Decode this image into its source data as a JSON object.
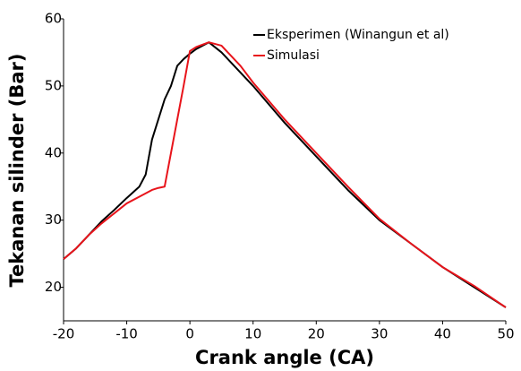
{
  "chart_data": {
    "type": "line",
    "xlabel": "Crank angle (CA)",
    "ylabel": "Tekanan silinder (Bar)",
    "x": [
      -20,
      -18,
      -16,
      -14,
      -12,
      -10,
      -8,
      -7,
      -6,
      -5,
      -4,
      -3,
      -2,
      -1,
      0,
      1,
      3,
      5,
      8,
      10,
      15,
      20,
      25,
      30,
      35,
      40,
      45,
      50
    ],
    "series": [
      {
        "name": "Eksperimen (Winangun et al)",
        "color": "#000000",
        "values": [
          24.2,
          25.8,
          27.8,
          29.8,
          31.5,
          33.3,
          35,
          36.8,
          42,
          45,
          48,
          50,
          53,
          54,
          54.8,
          55.5,
          56.5,
          55,
          52,
          50,
          44.5,
          39.5,
          34.5,
          30,
          26.5,
          23,
          20,
          17
        ]
      },
      {
        "name": "Simulasi",
        "color": "#e8141b",
        "values": [
          24.2,
          25.8,
          27.8,
          29.5,
          31,
          32.5,
          33.5,
          34,
          34.5,
          34.8,
          35,
          40,
          45,
          50,
          55.2,
          55.8,
          56.5,
          56,
          53,
          50.5,
          45,
          40,
          35,
          30.2,
          26.5,
          23,
          20.2,
          17
        ]
      }
    ],
    "xlim": [
      -20,
      50
    ],
    "xticks": [
      -20,
      -10,
      0,
      10,
      20,
      30,
      40,
      50
    ],
    "ylim": [
      15,
      60
    ],
    "yticks": [
      20,
      30,
      40,
      50,
      60
    ],
    "legend": "upper right",
    "grid": false
  }
}
